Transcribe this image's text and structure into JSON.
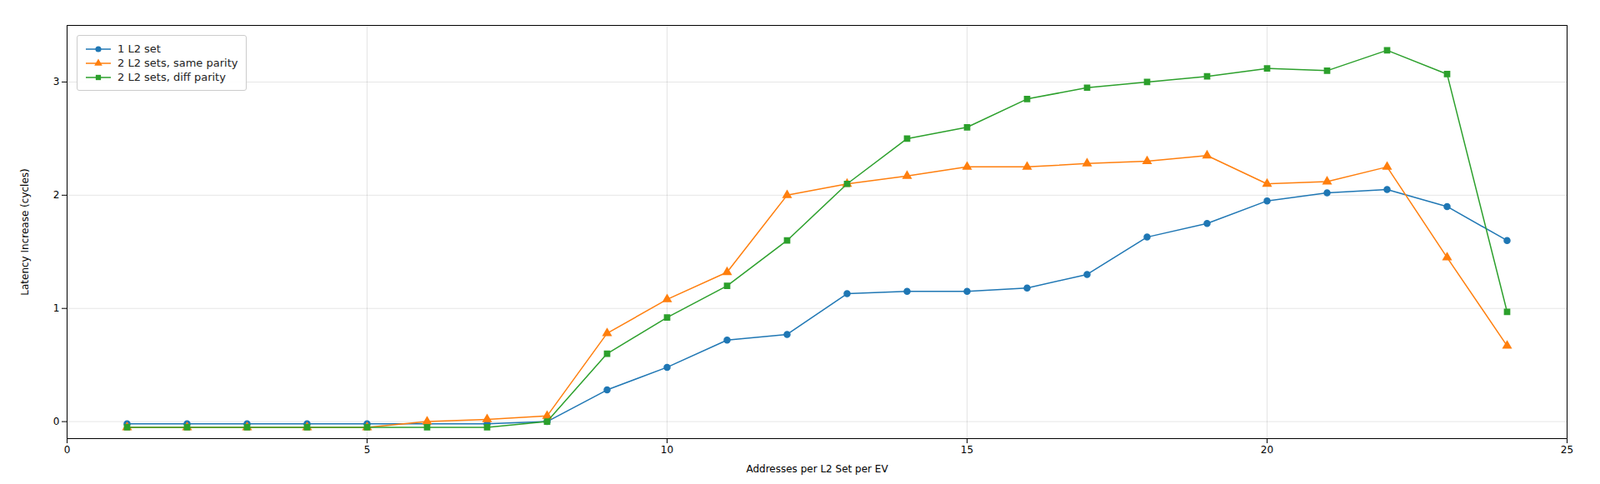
{
  "chart_data": {
    "type": "line",
    "title": "",
    "xlabel": "Addresses per L2 Set per EV",
    "ylabel": "Latency Increase (cycles)",
    "x": [
      1,
      2,
      3,
      4,
      5,
      6,
      7,
      8,
      9,
      10,
      11,
      12,
      13,
      14,
      15,
      16,
      17,
      18,
      19,
      20,
      21,
      22,
      23,
      24
    ],
    "series": [
      {
        "name": "1 L2 set",
        "color": "#1f77b4",
        "marker": "circle",
        "values": [
          -0.02,
          -0.02,
          -0.02,
          -0.02,
          -0.02,
          -0.02,
          -0.02,
          0.0,
          0.28,
          0.48,
          0.72,
          0.77,
          1.13,
          1.15,
          1.15,
          1.18,
          1.3,
          1.63,
          1.75,
          1.95,
          2.02,
          2.05,
          1.9,
          1.6
        ]
      },
      {
        "name": "2 L2 sets, same parity",
        "color": "#ff7f0e",
        "marker": "triangle",
        "values": [
          -0.05,
          -0.05,
          -0.05,
          -0.05,
          -0.05,
          0.0,
          0.02,
          0.05,
          0.78,
          1.08,
          1.32,
          2.0,
          2.1,
          2.17,
          2.25,
          2.25,
          2.28,
          2.3,
          2.35,
          2.1,
          2.12,
          2.25,
          1.45,
          0.67
        ]
      },
      {
        "name": "2 L2 sets, diff parity",
        "color": "#2ca02c",
        "marker": "square",
        "values": [
          -0.05,
          -0.05,
          -0.05,
          -0.05,
          -0.05,
          -0.05,
          -0.05,
          0.0,
          0.6,
          0.92,
          1.2,
          1.6,
          2.1,
          2.5,
          2.6,
          2.85,
          2.95,
          3.0,
          3.05,
          3.12,
          3.1,
          3.28,
          3.07,
          0.97
        ]
      }
    ],
    "xlim": [
      0,
      25
    ],
    "ylim": [
      -0.15,
      3.5
    ],
    "xticks": [
      0,
      5,
      10,
      15,
      20,
      25
    ],
    "yticks": [
      0,
      1,
      2,
      3
    ],
    "grid": true,
    "legend": "upper left"
  }
}
